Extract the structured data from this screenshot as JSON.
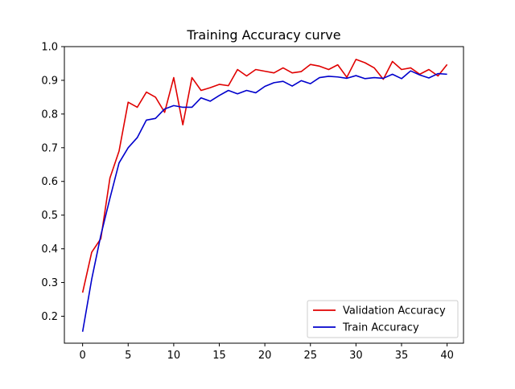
{
  "chart_data": {
    "type": "line",
    "title": "Training Accuracy curve",
    "xlabel": "",
    "ylabel": "",
    "xlim": [
      -2,
      41.8
    ],
    "ylim": [
      0.12,
      1.0
    ],
    "x_ticks": [
      0,
      5,
      10,
      15,
      20,
      25,
      30,
      35,
      40
    ],
    "y_ticks": [
      0.2,
      0.3,
      0.4,
      0.5,
      0.6,
      0.7,
      0.8,
      0.9,
      1.0
    ],
    "x_tick_labels": [
      "0",
      "5",
      "10",
      "15",
      "20",
      "25",
      "30",
      "35",
      "40"
    ],
    "y_tick_labels": [
      "0.2",
      "0.3",
      "0.4",
      "0.5",
      "0.6",
      "0.7",
      "0.8",
      "0.9",
      "1.0"
    ],
    "grid": false,
    "legend_position": "bottom-right",
    "x": [
      0,
      1,
      2,
      3,
      4,
      5,
      6,
      7,
      8,
      9,
      10,
      11,
      12,
      13,
      14,
      15,
      16,
      17,
      18,
      19,
      20,
      21,
      22,
      23,
      24,
      25,
      26,
      27,
      28,
      29,
      30,
      31,
      32,
      33,
      34,
      35,
      36,
      37,
      38,
      39,
      40
    ],
    "series": [
      {
        "name": "Validation Accuracy",
        "color": "#e00000",
        "values": [
          0.27,
          0.39,
          0.43,
          0.61,
          0.69,
          0.835,
          0.82,
          0.865,
          0.85,
          0.805,
          0.908,
          0.768,
          0.908,
          0.87,
          0.878,
          0.888,
          0.884,
          0.932,
          0.913,
          0.932,
          0.927,
          0.922,
          0.937,
          0.922,
          0.926,
          0.947,
          0.942,
          0.932,
          0.946,
          0.909,
          0.962,
          0.952,
          0.937,
          0.903,
          0.956,
          0.932,
          0.937,
          0.918,
          0.932,
          0.913,
          0.947
        ]
      },
      {
        "name": "Train Accuracy",
        "color": "#0000cc",
        "values": [
          0.154,
          0.31,
          0.44,
          0.55,
          0.655,
          0.7,
          0.73,
          0.782,
          0.787,
          0.815,
          0.825,
          0.82,
          0.82,
          0.848,
          0.838,
          0.855,
          0.87,
          0.86,
          0.87,
          0.863,
          0.882,
          0.893,
          0.897,
          0.883,
          0.899,
          0.89,
          0.908,
          0.912,
          0.91,
          0.906,
          0.914,
          0.905,
          0.908,
          0.906,
          0.918,
          0.905,
          0.928,
          0.916,
          0.907,
          0.92,
          0.918
        ]
      }
    ]
  }
}
